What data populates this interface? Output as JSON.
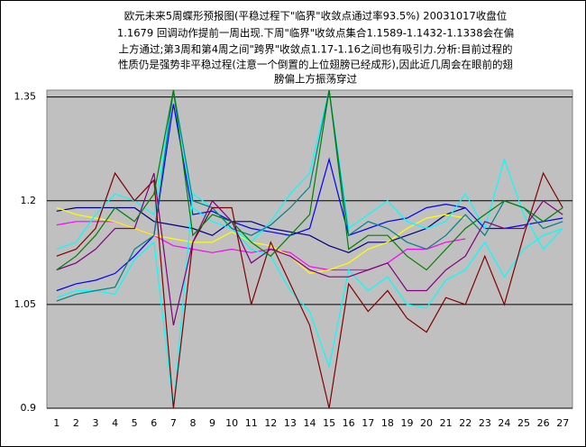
{
  "chart_data": {
    "type": "line",
    "title": [
      "欧元未来5周蝶形预报图(平稳过程下\"临界\"收敛点通过率93.5%) 20031017收盘位",
      "1.1679 回调动作提前一周出现.下周\"临界\"收敛点集合1.1589-1.1432-1.1338会在偏",
      "上方通过;第3周和第4周之间\"跨界\"收敛点1.17-1.16之间也有吸引力.分析:目前过程的",
      "性质仍是强势非平稳过程(注意一个倒置的上位翅膀已经成形),因此近几周会在眼前的翅",
      "膀偏上方振荡穿过"
    ],
    "categories": [
      1,
      2,
      3,
      4,
      5,
      6,
      7,
      8,
      9,
      10,
      11,
      12,
      13,
      14,
      15,
      16,
      17,
      18,
      19,
      20,
      21,
      22,
      23,
      24,
      25,
      26,
      27
    ],
    "ylim": [
      0.9,
      1.36
    ],
    "yticks": [
      0.9,
      1.05,
      1.2,
      {
        "value": 1.35,
        "label": "1.35"
      }
    ],
    "grid": true,
    "series": [
      {
        "color": "#0000ff",
        "values": [
          1.07,
          1.08,
          1.085,
          1.095,
          1.12,
          1.15,
          1.34,
          1.18,
          1.185,
          1.17,
          1.16,
          1.155,
          1.15,
          1.16,
          1.26,
          1.15,
          1.16,
          1.17,
          1.175,
          1.19,
          1.195,
          1.19,
          1.16,
          1.16,
          1.165,
          1.17,
          1.175
        ]
      },
      {
        "color": "#000080",
        "values": [
          1.185,
          1.19,
          1.19,
          1.19,
          1.19,
          1.17,
          1.165,
          1.16,
          1.15,
          1.17,
          1.17,
          1.16,
          1.155,
          1.15,
          1.135,
          1.125,
          1.14,
          1.14,
          1.15,
          1.16,
          1.18,
          1.19,
          null,
          null,
          null,
          null,
          null
        ]
      },
      {
        "color": "#ff00ff",
        "values": [
          1.165,
          1.17,
          1.17,
          1.17,
          1.16,
          1.15,
          1.135,
          1.13,
          1.125,
          1.13,
          1.125,
          1.13,
          1.125,
          1.105,
          1.1,
          1.1,
          1.1,
          1.11,
          1.13,
          1.13,
          1.14,
          1.145,
          null,
          null,
          null,
          null,
          null
        ]
      },
      {
        "color": "#ffff00",
        "values": [
          1.19,
          1.18,
          1.175,
          1.17,
          1.16,
          1.15,
          1.145,
          1.14,
          1.14,
          1.155,
          1.14,
          1.135,
          1.12,
          1.095,
          1.1,
          1.11,
          1.13,
          1.14,
          1.16,
          1.175,
          1.18,
          1.175,
          null,
          null,
          null,
          null,
          null
        ]
      },
      {
        "color": "#00ffff",
        "values": [
          1.06,
          1.07,
          1.07,
          1.065,
          1.115,
          1.14,
          0.9,
          1.21,
          1.19,
          1.16,
          1.13,
          1.12,
          1.07,
          1.04,
          0.96,
          1.1,
          1.07,
          1.09,
          1.05,
          1.045,
          1.085,
          1.1,
          1.14,
          1.09,
          1.13,
          1.15,
          1.16
        ]
      },
      {
        "color": "#00ffff",
        "values": [
          1.13,
          1.14,
          1.18,
          1.21,
          1.2,
          1.18,
          1.36,
          1.19,
          1.17,
          1.16,
          1.14,
          1.17,
          1.21,
          1.24,
          1.36,
          1.16,
          1.18,
          1.2,
          1.17,
          1.16,
          1.17,
          1.21,
          1.16,
          1.26,
          1.18,
          1.13,
          1.16
        ]
      },
      {
        "color": "#008080",
        "values": [
          1.055,
          1.065,
          1.07,
          1.075,
          1.13,
          1.15,
          1.36,
          1.2,
          1.19,
          1.16,
          1.15,
          1.165,
          1.19,
          1.22,
          1.36,
          1.15,
          1.17,
          1.16,
          1.14,
          1.13,
          1.15,
          1.18,
          1.15,
          1.2,
          1.19,
          1.16,
          1.17
        ]
      },
      {
        "color": "#800000",
        "values": [
          1.12,
          1.13,
          1.16,
          1.24,
          1.2,
          1.23,
          0.9,
          1.14,
          1.19,
          1.19,
          1.05,
          1.14,
          1.08,
          1.02,
          0.9,
          1.08,
          1.04,
          1.07,
          1.03,
          1.01,
          1.06,
          1.05,
          1.12,
          1.05,
          1.15,
          1.24,
          1.19
        ]
      },
      {
        "color": "#800080",
        "values": [
          1.1,
          1.11,
          1.13,
          1.16,
          1.16,
          1.24,
          1.02,
          1.14,
          1.2,
          1.17,
          1.11,
          1.13,
          1.12,
          1.1,
          1.09,
          1.09,
          1.1,
          1.11,
          1.07,
          1.07,
          1.1,
          1.12,
          1.17,
          1.16,
          1.16,
          1.2,
          1.18
        ]
      },
      {
        "color": "#008000",
        "values": [
          1.1,
          1.12,
          1.15,
          1.19,
          1.17,
          1.21,
          1.36,
          1.15,
          1.18,
          1.17,
          1.14,
          1.12,
          1.15,
          1.18,
          1.36,
          1.13,
          1.15,
          1.15,
          1.12,
          1.1,
          1.13,
          1.16,
          1.18,
          1.2,
          1.19,
          1.17,
          1.19
        ]
      }
    ]
  }
}
